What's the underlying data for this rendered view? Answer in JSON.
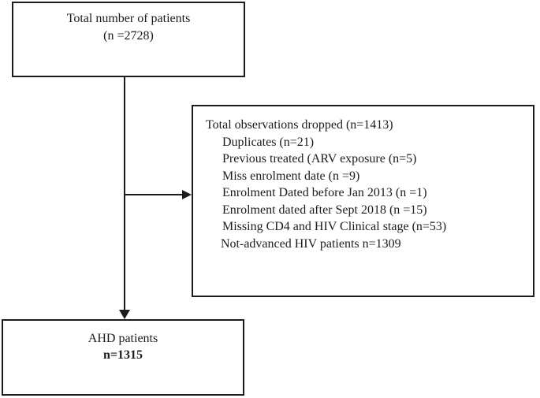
{
  "diagram": {
    "top_box": {
      "line1": "Total number of patients",
      "line2": "(n =2728)"
    },
    "dropped_box": {
      "title": "Total observations dropped (n=1413)",
      "items": [
        "Duplicates (n=21)",
        "Previous treated (ARV exposure (n=5)",
        "Miss enrolment date (n =9)",
        "Enrolment Dated before Jan 2013 (n =1)",
        "Enrolment dated after Sept 2018 (n =15)",
        "Missing CD4 and HIV Clinical stage (n=53)",
        "Not-advanced HIV patients n=1309"
      ]
    },
    "bottom_box": {
      "line1": "AHD patients",
      "line2": "n=1315"
    },
    "colors": {
      "line": "#1c1c1c",
      "text": "#1c1c1c",
      "background": "#ffffff"
    }
  }
}
